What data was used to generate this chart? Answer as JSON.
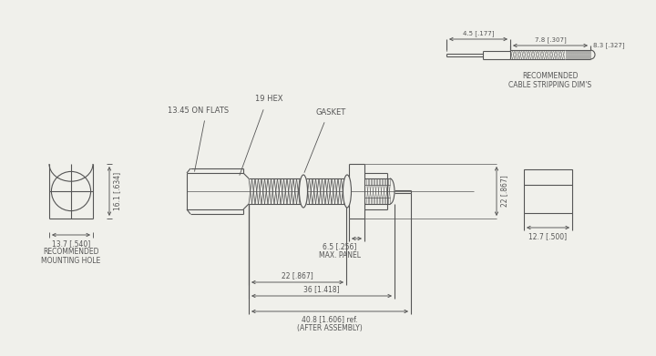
{
  "bg_color": "#f0f0eb",
  "line_color": "#555555",
  "annotations": {
    "hex_label": "19 HEX",
    "flats_label": "13.45 ON FLATS",
    "gasket_label": "GASKET",
    "mounting_hole_label": "RECOMMENDED\nMOUNTING HOLE",
    "cable_stripping_label": "RECOMMENDED\nCABLE STRIPPING DIM'S",
    "panel_label": "6.5 [.256]\nMAX. PANEL",
    "dim_22h_label": "22 [.867]",
    "dim_36_label": "36 [1.418]",
    "dim_40_label": "40.8 [1.606] ref.\n(AFTER ASSEMBLY)",
    "dim_13_7_label": "13.7 [.540]",
    "dim_16_1_label": "16.1 [.634]",
    "dim_22v_label": "22 [.867]",
    "dim_12_7_label": "12.7 [.500]",
    "dim_7_8_label": "7.8 [.307]",
    "dim_4_5_label": "4.5 [.177]",
    "dim_8_3_label": "8.3 [.327]"
  }
}
